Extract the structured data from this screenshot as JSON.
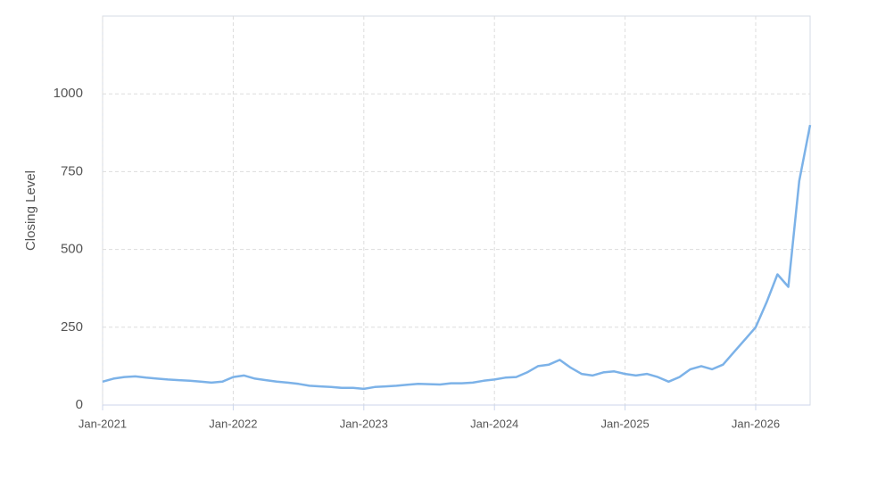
{
  "chart_data": {
    "type": "line",
    "y_label": "Closing Level",
    "x": [
      "2021-01",
      "2021-02",
      "2021-03",
      "2021-04",
      "2021-05",
      "2021-06",
      "2021-07",
      "2021-08",
      "2021-09",
      "2021-10",
      "2021-11",
      "2021-12",
      "2022-01",
      "2022-02",
      "2022-03",
      "2022-04",
      "2022-05",
      "2022-06",
      "2022-07",
      "2022-08",
      "2022-09",
      "2022-10",
      "2022-11",
      "2022-12",
      "2023-01",
      "2023-02",
      "2023-03",
      "2023-04",
      "2023-05",
      "2023-06",
      "2023-07",
      "2023-08",
      "2023-09",
      "2023-10",
      "2023-11",
      "2023-12",
      "2024-01",
      "2024-02",
      "2024-03",
      "2024-04",
      "2024-05",
      "2024-06",
      "2024-07",
      "2024-08",
      "2024-09",
      "2024-10",
      "2024-11",
      "2024-12",
      "2025-01",
      "2025-02",
      "2025-03",
      "2025-04",
      "2025-05",
      "2025-06",
      "2025-07",
      "2025-08",
      "2025-09",
      "2025-10",
      "2025-11",
      "2025-12",
      "2026-01",
      "2026-02",
      "2026-03",
      "2026-04",
      "2026-05",
      "2026-06"
    ],
    "series": [
      {
        "name": "Closing Level",
        "color": "#7cb2e8",
        "values": [
          75,
          85,
          90,
          92,
          88,
          85,
          82,
          80,
          78,
          75,
          72,
          75,
          90,
          95,
          85,
          80,
          75,
          72,
          68,
          62,
          60,
          58,
          55,
          55,
          52,
          58,
          60,
          62,
          65,
          68,
          67,
          66,
          70,
          70,
          72,
          78,
          82,
          88,
          90,
          105,
          125,
          130,
          145,
          120,
          100,
          95,
          105,
          108,
          100,
          95,
          100,
          90,
          75,
          90,
          115,
          125,
          115,
          130,
          170,
          210,
          250,
          330,
          420,
          380,
          720,
          900
        ]
      }
    ],
    "xlim": [
      "2021-01",
      "2026-06"
    ],
    "xticks": [
      {
        "value": "2021-01",
        "label": "Jan-2021"
      },
      {
        "value": "2022-01",
        "label": "Jan-2022"
      },
      {
        "value": "2023-01",
        "label": "Jan-2023"
      },
      {
        "value": "2024-01",
        "label": "Jan-2024"
      },
      {
        "value": "2025-01",
        "label": "Jan-2025"
      },
      {
        "value": "2026-01",
        "label": "Jan-2026"
      }
    ],
    "ylim": [
      0,
      1250
    ],
    "yticks": [
      0,
      250,
      500,
      750,
      1000
    ],
    "grid": true
  }
}
